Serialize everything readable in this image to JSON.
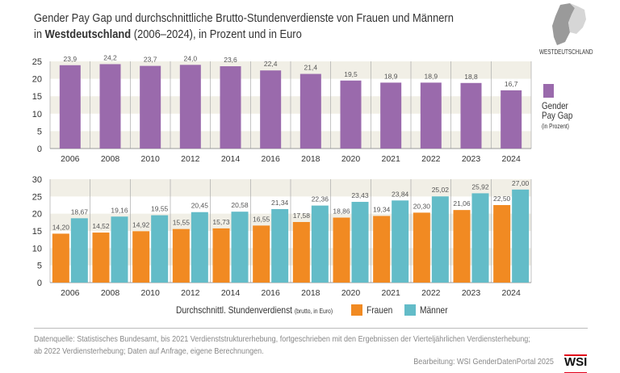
{
  "title": {
    "line1": "Gender Pay Gap und durchschnittliche Brutto-Stundenverdienste von Frauen und Männern",
    "line2_pre": "in ",
    "line2_bold": "Westdeutschland",
    "line2_post": " (2006–2024), in Prozent und in Euro"
  },
  "map_label": "WESTDEUTSCHLAND",
  "colors": {
    "gap": "#9a6aac",
    "frauen": "#f18a22",
    "maenner": "#63bcc8",
    "band": "#f1efe6"
  },
  "chart_data": [
    {
      "type": "bar",
      "categories": [
        "2006",
        "2008",
        "2010",
        "2012",
        "2014",
        "2016",
        "2018",
        "2020",
        "2021",
        "2022",
        "2023",
        "2024"
      ],
      "series": [
        {
          "name": "Gender Pay Gap",
          "values": [
            23.9,
            24.2,
            23.7,
            24.0,
            23.6,
            22.4,
            21.4,
            19.5,
            18.9,
            18.9,
            18.8,
            16.7
          ],
          "labels": [
            "23,9",
            "24,2",
            "23,7",
            "24,0",
            "23,6",
            "22,4",
            "21,4",
            "19,5",
            "18,9",
            "18,9",
            "18,8",
            "16,7"
          ]
        }
      ],
      "ylim": [
        0,
        25
      ],
      "yticks": [
        "0",
        "5",
        "10",
        "15",
        "20",
        "25"
      ],
      "legend": {
        "name": "Gender",
        "name2": "Pay Gap",
        "unit": "(in Prozent)"
      }
    },
    {
      "type": "bar",
      "categories": [
        "2006",
        "2008",
        "2010",
        "2012",
        "2014",
        "2016",
        "2018",
        "2020",
        "2021",
        "2022",
        "2023",
        "2024"
      ],
      "series": [
        {
          "name": "Frauen",
          "values": [
            14.2,
            14.52,
            14.92,
            15.55,
            15.73,
            16.55,
            17.58,
            18.86,
            19.34,
            20.3,
            21.06,
            22.5
          ],
          "labels": [
            "14,20",
            "14,52",
            "14,92",
            "15,55",
            "15,73",
            "16,55",
            "17,58",
            "18,86",
            "19,34",
            "20,30",
            "21,06",
            "22,50"
          ]
        },
        {
          "name": "Männer",
          "values": [
            18.67,
            19.16,
            19.55,
            20.45,
            20.58,
            21.34,
            22.36,
            23.43,
            23.84,
            25.02,
            25.92,
            27.0
          ],
          "labels": [
            "18,67",
            "19,16",
            "19,55",
            "20,45",
            "20,58",
            "21,34",
            "22,36",
            "23,43",
            "23,84",
            "25,02",
            "25,92",
            "27,00"
          ]
        }
      ],
      "ylim": [
        0,
        30
      ],
      "yticks": [
        "0",
        "5",
        "10",
        "15",
        "20",
        "25",
        "30"
      ],
      "legend": {
        "title": "Durchschnittl. Stundenverdienst",
        "unit": "(brutto, in Euro)"
      }
    }
  ],
  "footer": {
    "source1": "Datenquelle: Statistisches Bundesamt, bis 2021 Verdienststrukturerhebung, fortgeschrieben mit den Ergebnissen der Vierteljährlichen Verdiensterhebung;",
    "source2": "ab 2022 Verdiensterhebung; Daten auf Anfrage, eigene Berechnungen.",
    "credit": "Bearbeitung: WSI GenderDatenPortal 2025",
    "logo": "WSI"
  }
}
